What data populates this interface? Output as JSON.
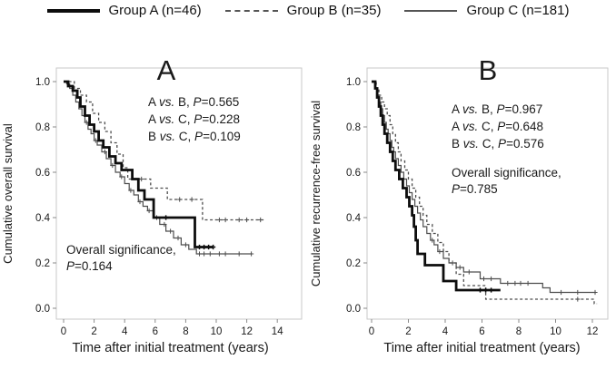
{
  "figure": {
    "background": "#ffffff",
    "text_color": "#1a1a1a",
    "colors": {
      "curve_thick": "#0d0d0d",
      "curve_light": "#4d4d4d",
      "frame": "#c9c9c9",
      "tick": "#8a8a8a"
    },
    "legend": [
      {
        "label": "Group A (n=46)",
        "style": "thick-solid"
      },
      {
        "label": "Group B (n=35)",
        "style": "dashed"
      },
      {
        "label": "Group C (n=181)",
        "style": "thin-solid"
      }
    ]
  },
  "chart_data": [
    {
      "type": "line",
      "subtype": "kaplan-meier-step",
      "panel": "A",
      "xlabel": "Time after initial treatment (years)",
      "ylabel": "Cumulative overall survival",
      "xticks": [
        0,
        2,
        4,
        6,
        8,
        10,
        12,
        14
      ],
      "yticks": [
        "0.0",
        "0.2",
        "0.4",
        "0.6",
        "0.8",
        "1.0"
      ],
      "xlim": [
        0,
        14
      ],
      "ylim": [
        0,
        1
      ],
      "grid": false,
      "legend_position": "top",
      "pairwise_p": [
        "A vs. B, P=0.565",
        "A vs. C, P=0.228",
        "B vs. C, P=0.109"
      ],
      "overall_p": [
        "Overall significance,",
        "P=0.164"
      ],
      "series": [
        {
          "name": "Group A (n=46)",
          "style": "thick-solid",
          "steps": [
            [
              0,
              1.0
            ],
            [
              0.3,
              0.98
            ],
            [
              0.6,
              0.96
            ],
            [
              0.9,
              0.93
            ],
            [
              1.1,
              0.89
            ],
            [
              1.4,
              0.85
            ],
            [
              1.7,
              0.81
            ],
            [
              2.0,
              0.78
            ],
            [
              2.3,
              0.74
            ],
            [
              2.6,
              0.71
            ],
            [
              3.0,
              0.67
            ],
            [
              3.4,
              0.64
            ],
            [
              3.8,
              0.61
            ],
            [
              4.5,
              0.57
            ],
            [
              4.9,
              0.52
            ],
            [
              5.3,
              0.48
            ],
            [
              5.9,
              0.4
            ],
            [
              8.6,
              0.27
            ]
          ],
          "end": 9.8,
          "censors": [
            [
              6.7,
              0.4
            ],
            [
              8.9,
              0.27
            ],
            [
              9.2,
              0.27
            ],
            [
              9.5,
              0.27
            ],
            [
              9.8,
              0.27
            ]
          ]
        },
        {
          "name": "Group B (n=35)",
          "style": "dashed",
          "steps": [
            [
              0,
              1.0
            ],
            [
              0.7,
              0.97
            ],
            [
              1.1,
              0.94
            ],
            [
              1.5,
              0.91
            ],
            [
              1.9,
              0.86
            ],
            [
              2.3,
              0.82
            ],
            [
              2.7,
              0.78
            ],
            [
              3.1,
              0.73
            ],
            [
              3.5,
              0.68
            ],
            [
              3.9,
              0.62
            ],
            [
              4.2,
              0.57
            ],
            [
              5.7,
              0.53
            ],
            [
              6.8,
              0.48
            ],
            [
              9.1,
              0.39
            ]
          ],
          "end": 13.2,
          "censors": [
            [
              5.1,
              0.57
            ],
            [
              7.6,
              0.48
            ],
            [
              8.4,
              0.48
            ],
            [
              10.2,
              0.39
            ],
            [
              10.6,
              0.39
            ],
            [
              11.5,
              0.39
            ],
            [
              12.0,
              0.39
            ],
            [
              12.9,
              0.39
            ]
          ]
        },
        {
          "name": "Group C (n=181)",
          "style": "thin-solid",
          "steps": [
            [
              0,
              1.0
            ],
            [
              0.2,
              0.99
            ],
            [
              0.4,
              0.97
            ],
            [
              0.6,
              0.94
            ],
            [
              0.8,
              0.91
            ],
            [
              1.0,
              0.88
            ],
            [
              1.2,
              0.85
            ],
            [
              1.4,
              0.82
            ],
            [
              1.6,
              0.79
            ],
            [
              1.8,
              0.77
            ],
            [
              2.0,
              0.74
            ],
            [
              2.2,
              0.72
            ],
            [
              2.5,
              0.69
            ],
            [
              2.8,
              0.66
            ],
            [
              3.1,
              0.63
            ],
            [
              3.4,
              0.6
            ],
            [
              3.7,
              0.58
            ],
            [
              4.0,
              0.55
            ],
            [
              4.3,
              0.52
            ],
            [
              4.6,
              0.5
            ],
            [
              4.9,
              0.47
            ],
            [
              5.2,
              0.45
            ],
            [
              5.5,
              0.43
            ],
            [
              5.9,
              0.4
            ],
            [
              6.3,
              0.37
            ],
            [
              6.7,
              0.34
            ],
            [
              7.2,
              0.31
            ],
            [
              7.7,
              0.28
            ],
            [
              8.2,
              0.26
            ],
            [
              8.7,
              0.24
            ]
          ],
          "end": 12.3,
          "censors": [
            [
              1.5,
              0.82
            ],
            [
              2.1,
              0.74
            ],
            [
              2.7,
              0.69
            ],
            [
              3.2,
              0.63
            ],
            [
              3.8,
              0.58
            ],
            [
              4.4,
              0.52
            ],
            [
              5.0,
              0.47
            ],
            [
              5.6,
              0.43
            ],
            [
              6.1,
              0.4
            ],
            [
              6.6,
              0.37
            ],
            [
              7.0,
              0.34
            ],
            [
              7.5,
              0.31
            ],
            [
              8.0,
              0.28
            ],
            [
              8.9,
              0.24
            ],
            [
              9.2,
              0.24
            ],
            [
              9.6,
              0.24
            ],
            [
              10.2,
              0.24
            ],
            [
              10.6,
              0.24
            ],
            [
              11.5,
              0.24
            ],
            [
              12.3,
              0.24
            ]
          ]
        }
      ]
    },
    {
      "type": "line",
      "subtype": "kaplan-meier-step",
      "panel": "B",
      "xlabel": "Time after initial treatment (years)",
      "ylabel": "Cumulative recurrence-free survival",
      "xticks": [
        0,
        2,
        4,
        6,
        8,
        10,
        12
      ],
      "yticks": [
        "0.0",
        "0.2",
        "0.4",
        "0.6",
        "0.8",
        "1.0"
      ],
      "xlim": [
        0,
        12
      ],
      "ylim": [
        0,
        1
      ],
      "grid": false,
      "legend_position": "top",
      "pairwise_p": [
        "A vs. B, P=0.967",
        "A vs. C, P=0.648",
        "B vs. C, P=0.576"
      ],
      "overall_p": [
        "Overall significance,",
        "P=0.785"
      ],
      "series": [
        {
          "name": "Group A (n=46)",
          "style": "thick-solid",
          "steps": [
            [
              0,
              1.0
            ],
            [
              0.2,
              0.97
            ],
            [
              0.3,
              0.93
            ],
            [
              0.4,
              0.89
            ],
            [
              0.5,
              0.85
            ],
            [
              0.6,
              0.81
            ],
            [
              0.7,
              0.77
            ],
            [
              0.85,
              0.73
            ],
            [
              1.0,
              0.69
            ],
            [
              1.15,
              0.65
            ],
            [
              1.3,
              0.61
            ],
            [
              1.5,
              0.57
            ],
            [
              1.7,
              0.53
            ],
            [
              1.9,
              0.49
            ],
            [
              2.05,
              0.45
            ],
            [
              2.2,
              0.41
            ],
            [
              2.3,
              0.36
            ],
            [
              2.4,
              0.3
            ],
            [
              2.5,
              0.24
            ],
            [
              2.9,
              0.19
            ],
            [
              3.9,
              0.12
            ],
            [
              4.6,
              0.08
            ]
          ],
          "end": 7.0,
          "censors": [
            [
              5.9,
              0.08
            ],
            [
              6.2,
              0.08
            ],
            [
              6.5,
              0.08
            ]
          ]
        },
        {
          "name": "Group B (n=35)",
          "style": "dashed",
          "steps": [
            [
              0,
              1.0
            ],
            [
              0.25,
              0.97
            ],
            [
              0.4,
              0.94
            ],
            [
              0.55,
              0.91
            ],
            [
              0.7,
              0.88
            ],
            [
              0.85,
              0.85
            ],
            [
              1.0,
              0.81
            ],
            [
              1.15,
              0.77
            ],
            [
              1.3,
              0.73
            ],
            [
              1.45,
              0.69
            ],
            [
              1.6,
              0.65
            ],
            [
              1.8,
              0.61
            ],
            [
              2.0,
              0.57
            ],
            [
              2.2,
              0.53
            ],
            [
              2.4,
              0.49
            ],
            [
              2.6,
              0.45
            ],
            [
              2.8,
              0.41
            ],
            [
              3.0,
              0.37
            ],
            [
              3.3,
              0.33
            ],
            [
              3.6,
              0.29
            ],
            [
              3.9,
              0.25
            ],
            [
              4.2,
              0.2
            ],
            [
              4.6,
              0.15
            ],
            [
              5.0,
              0.1
            ],
            [
              6.2,
              0.04
            ],
            [
              12.1,
              0.02
            ]
          ],
          "end": 12.25,
          "censors": [
            [
              11.2,
              0.04
            ]
          ]
        },
        {
          "name": "Group C (n=181)",
          "style": "thin-solid",
          "steps": [
            [
              0,
              1.0
            ],
            [
              0.2,
              0.97
            ],
            [
              0.3,
              0.94
            ],
            [
              0.4,
              0.91
            ],
            [
              0.5,
              0.88
            ],
            [
              0.6,
              0.85
            ],
            [
              0.7,
              0.82
            ],
            [
              0.8,
              0.79
            ],
            [
              0.9,
              0.77
            ],
            [
              1.0,
              0.74
            ],
            [
              1.1,
              0.71
            ],
            [
              1.2,
              0.69
            ],
            [
              1.3,
              0.66
            ],
            [
              1.45,
              0.63
            ],
            [
              1.6,
              0.6
            ],
            [
              1.75,
              0.57
            ],
            [
              1.9,
              0.54
            ],
            [
              2.05,
              0.51
            ],
            [
              2.2,
              0.48
            ],
            [
              2.35,
              0.45
            ],
            [
              2.5,
              0.42
            ],
            [
              2.65,
              0.39
            ],
            [
              2.8,
              0.36
            ],
            [
              3.0,
              0.33
            ],
            [
              3.2,
              0.3
            ],
            [
              3.4,
              0.28
            ],
            [
              3.6,
              0.25
            ],
            [
              3.9,
              0.22
            ],
            [
              4.2,
              0.2
            ],
            [
              4.6,
              0.18
            ],
            [
              5.0,
              0.16
            ],
            [
              5.9,
              0.13
            ],
            [
              7.0,
              0.11
            ],
            [
              9.3,
              0.09
            ],
            [
              9.7,
              0.07
            ]
          ],
          "end": 12.2,
          "censors": [
            [
              3.3,
              0.3
            ],
            [
              3.7,
              0.25
            ],
            [
              4.4,
              0.2
            ],
            [
              4.8,
              0.18
            ],
            [
              5.3,
              0.16
            ],
            [
              6.1,
              0.13
            ],
            [
              6.5,
              0.13
            ],
            [
              7.4,
              0.11
            ],
            [
              7.8,
              0.11
            ],
            [
              8.1,
              0.11
            ],
            [
              8.5,
              0.11
            ],
            [
              10.3,
              0.07
            ],
            [
              11.2,
              0.07
            ],
            [
              12.15,
              0.07
            ]
          ]
        }
      ]
    }
  ]
}
